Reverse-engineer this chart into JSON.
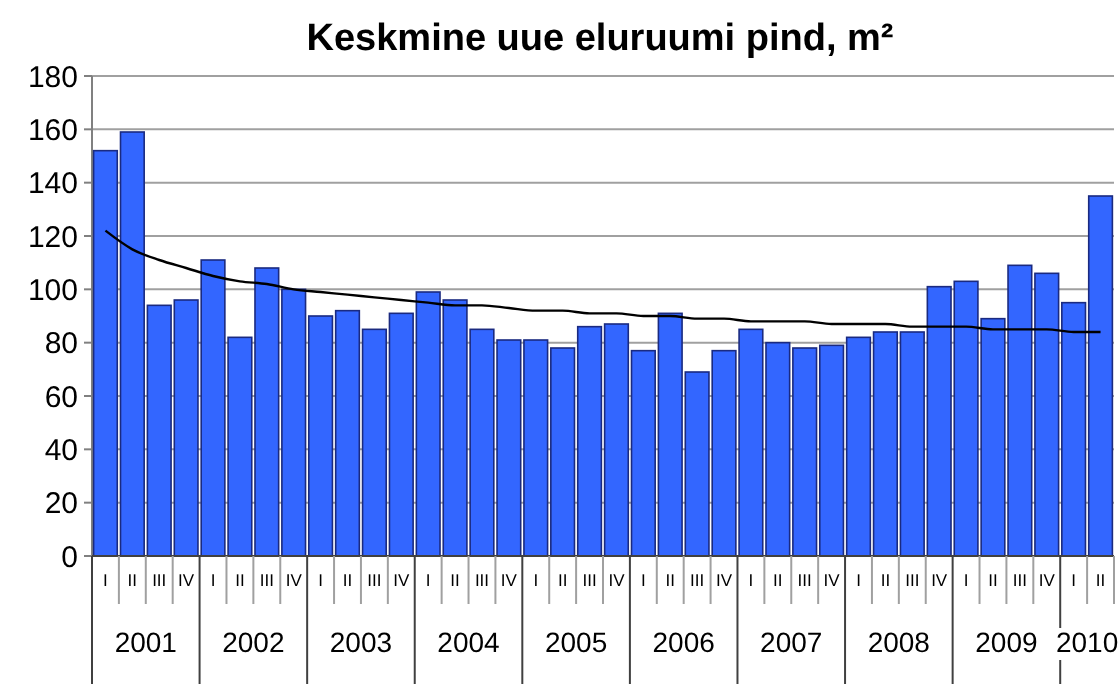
{
  "chart_data": {
    "type": "bar",
    "title": "Keskmine uue eluruumi pind, m²",
    "categories": [
      "I",
      "II",
      "III",
      "IV",
      "I",
      "II",
      "III",
      "IV",
      "I",
      "II",
      "III",
      "IV",
      "I",
      "II",
      "III",
      "IV",
      "I",
      "II",
      "III",
      "IV",
      "I",
      "II",
      "III",
      "IV",
      "I",
      "II",
      "III",
      "IV",
      "I",
      "II",
      "III",
      "IV",
      "I",
      "II",
      "III",
      "IV",
      "I",
      "II"
    ],
    "series": [
      {
        "color": "#3366ff",
        "values": [
          152,
          159,
          94,
          96,
          111,
          82,
          108,
          100,
          90,
          92,
          85,
          91,
          99,
          96,
          85,
          81,
          81,
          78,
          86,
          87,
          77,
          91,
          69,
          77,
          85,
          80,
          78,
          79,
          82,
          84,
          84,
          101,
          103,
          89,
          109,
          106,
          95,
          135
        ]
      },
      {
        "type": "line",
        "color": "#000000",
        "values": [
          122,
          115,
          111,
          108,
          105,
          103,
          102,
          100,
          99,
          98,
          97,
          96,
          95,
          94,
          94,
          93,
          92,
          92,
          91,
          91,
          90,
          90,
          89,
          89,
          88,
          88,
          88,
          87,
          87,
          87,
          86,
          86,
          86,
          85,
          85,
          85,
          84,
          84
        ]
      }
    ],
    "annotations": [
      "2001",
      "2002",
      "2003",
      "2004",
      "2005",
      "2006",
      "2007",
      "2008",
      "2009",
      "2010"
    ],
    "ylim": [
      0,
      180
    ],
    "yticks": [
      0,
      20,
      40,
      60,
      80,
      100,
      120,
      140,
      160,
      180
    ],
    "grid": "y",
    "marker": "none",
    "line_style": "solid"
  }
}
